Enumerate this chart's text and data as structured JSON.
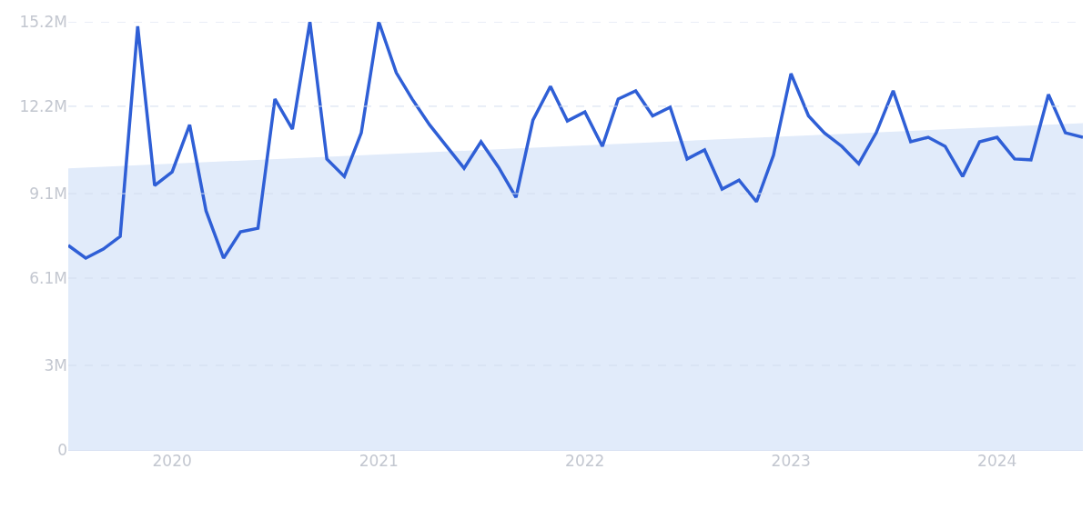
{
  "chart_data": {
    "type": "line",
    "x": [
      "2019-07",
      "2019-08",
      "2019-09",
      "2019-10",
      "2019-11",
      "2019-12",
      "2020-01",
      "2020-02",
      "2020-03",
      "2020-04",
      "2020-05",
      "2020-06",
      "2020-07",
      "2020-08",
      "2020-09",
      "2020-10",
      "2020-11",
      "2020-12",
      "2021-01",
      "2021-02",
      "2021-03",
      "2021-04",
      "2021-05",
      "2021-06",
      "2021-07",
      "2021-08",
      "2021-09",
      "2021-10",
      "2021-11",
      "2021-12",
      "2022-01",
      "2022-02",
      "2022-03",
      "2022-04",
      "2022-05",
      "2022-06",
      "2022-07",
      "2022-08",
      "2022-09",
      "2022-10",
      "2022-11",
      "2022-12",
      "2023-01",
      "2023-02",
      "2023-03",
      "2023-04",
      "2023-05",
      "2023-06",
      "2023-07",
      "2023-08",
      "2023-09",
      "2023-10",
      "2023-11",
      "2023-12",
      "2024-01",
      "2024-02",
      "2024-03",
      "2024-04",
      "2024-05",
      "2024-06"
    ],
    "series": [
      {
        "type": "area",
        "x": [
          "2019-07",
          "2024-06"
        ],
        "color": "#e1ebfa",
        "values": [
          10.0,
          11.6
        ]
      },
      {
        "color": "#2f5fd6",
        "values": [
          7.26,
          6.81,
          7.13,
          7.58,
          15.04,
          9.39,
          9.87,
          11.54,
          8.49,
          6.81,
          7.74,
          7.87,
          12.46,
          11.39,
          15.2,
          10.33,
          9.71,
          11.26,
          15.2,
          13.39,
          12.46,
          11.54,
          10.78,
          10.0,
          10.94,
          10.04,
          8.97,
          11.71,
          12.91,
          11.68,
          12.0,
          10.78,
          12.46,
          12.75,
          11.86,
          12.17,
          10.33,
          10.65,
          9.26,
          9.58,
          8.81,
          10.46,
          13.36,
          11.86,
          11.26,
          10.78,
          10.16,
          11.26,
          12.75,
          10.94,
          11.1,
          10.78,
          9.71,
          10.94,
          11.1,
          10.33,
          10.3,
          12.62,
          11.26,
          11.1
        ]
      }
    ],
    "xlim": [
      "2019-07",
      "2024-06"
    ],
    "xticks": [
      {
        "value": "2020-01",
        "label": "2020"
      },
      {
        "value": "2021-01",
        "label": "2021"
      },
      {
        "value": "2022-01",
        "label": "2022"
      },
      {
        "value": "2023-01",
        "label": "2023"
      },
      {
        "value": "2024-01",
        "label": "2024"
      }
    ],
    "ylim": [
      0,
      15.2
    ],
    "yticks": [
      0,
      {
        "value": 3,
        "label": "3M"
      },
      {
        "value": 6.1,
        "label": "6.1M"
      },
      {
        "value": 9.1,
        "label": "9.1M"
      },
      {
        "value": 12.2,
        "label": "12.2M"
      },
      {
        "value": 15.2,
        "label": "15.2M"
      }
    ],
    "grid": "y",
    "marker": "none",
    "line_style": "solid"
  }
}
